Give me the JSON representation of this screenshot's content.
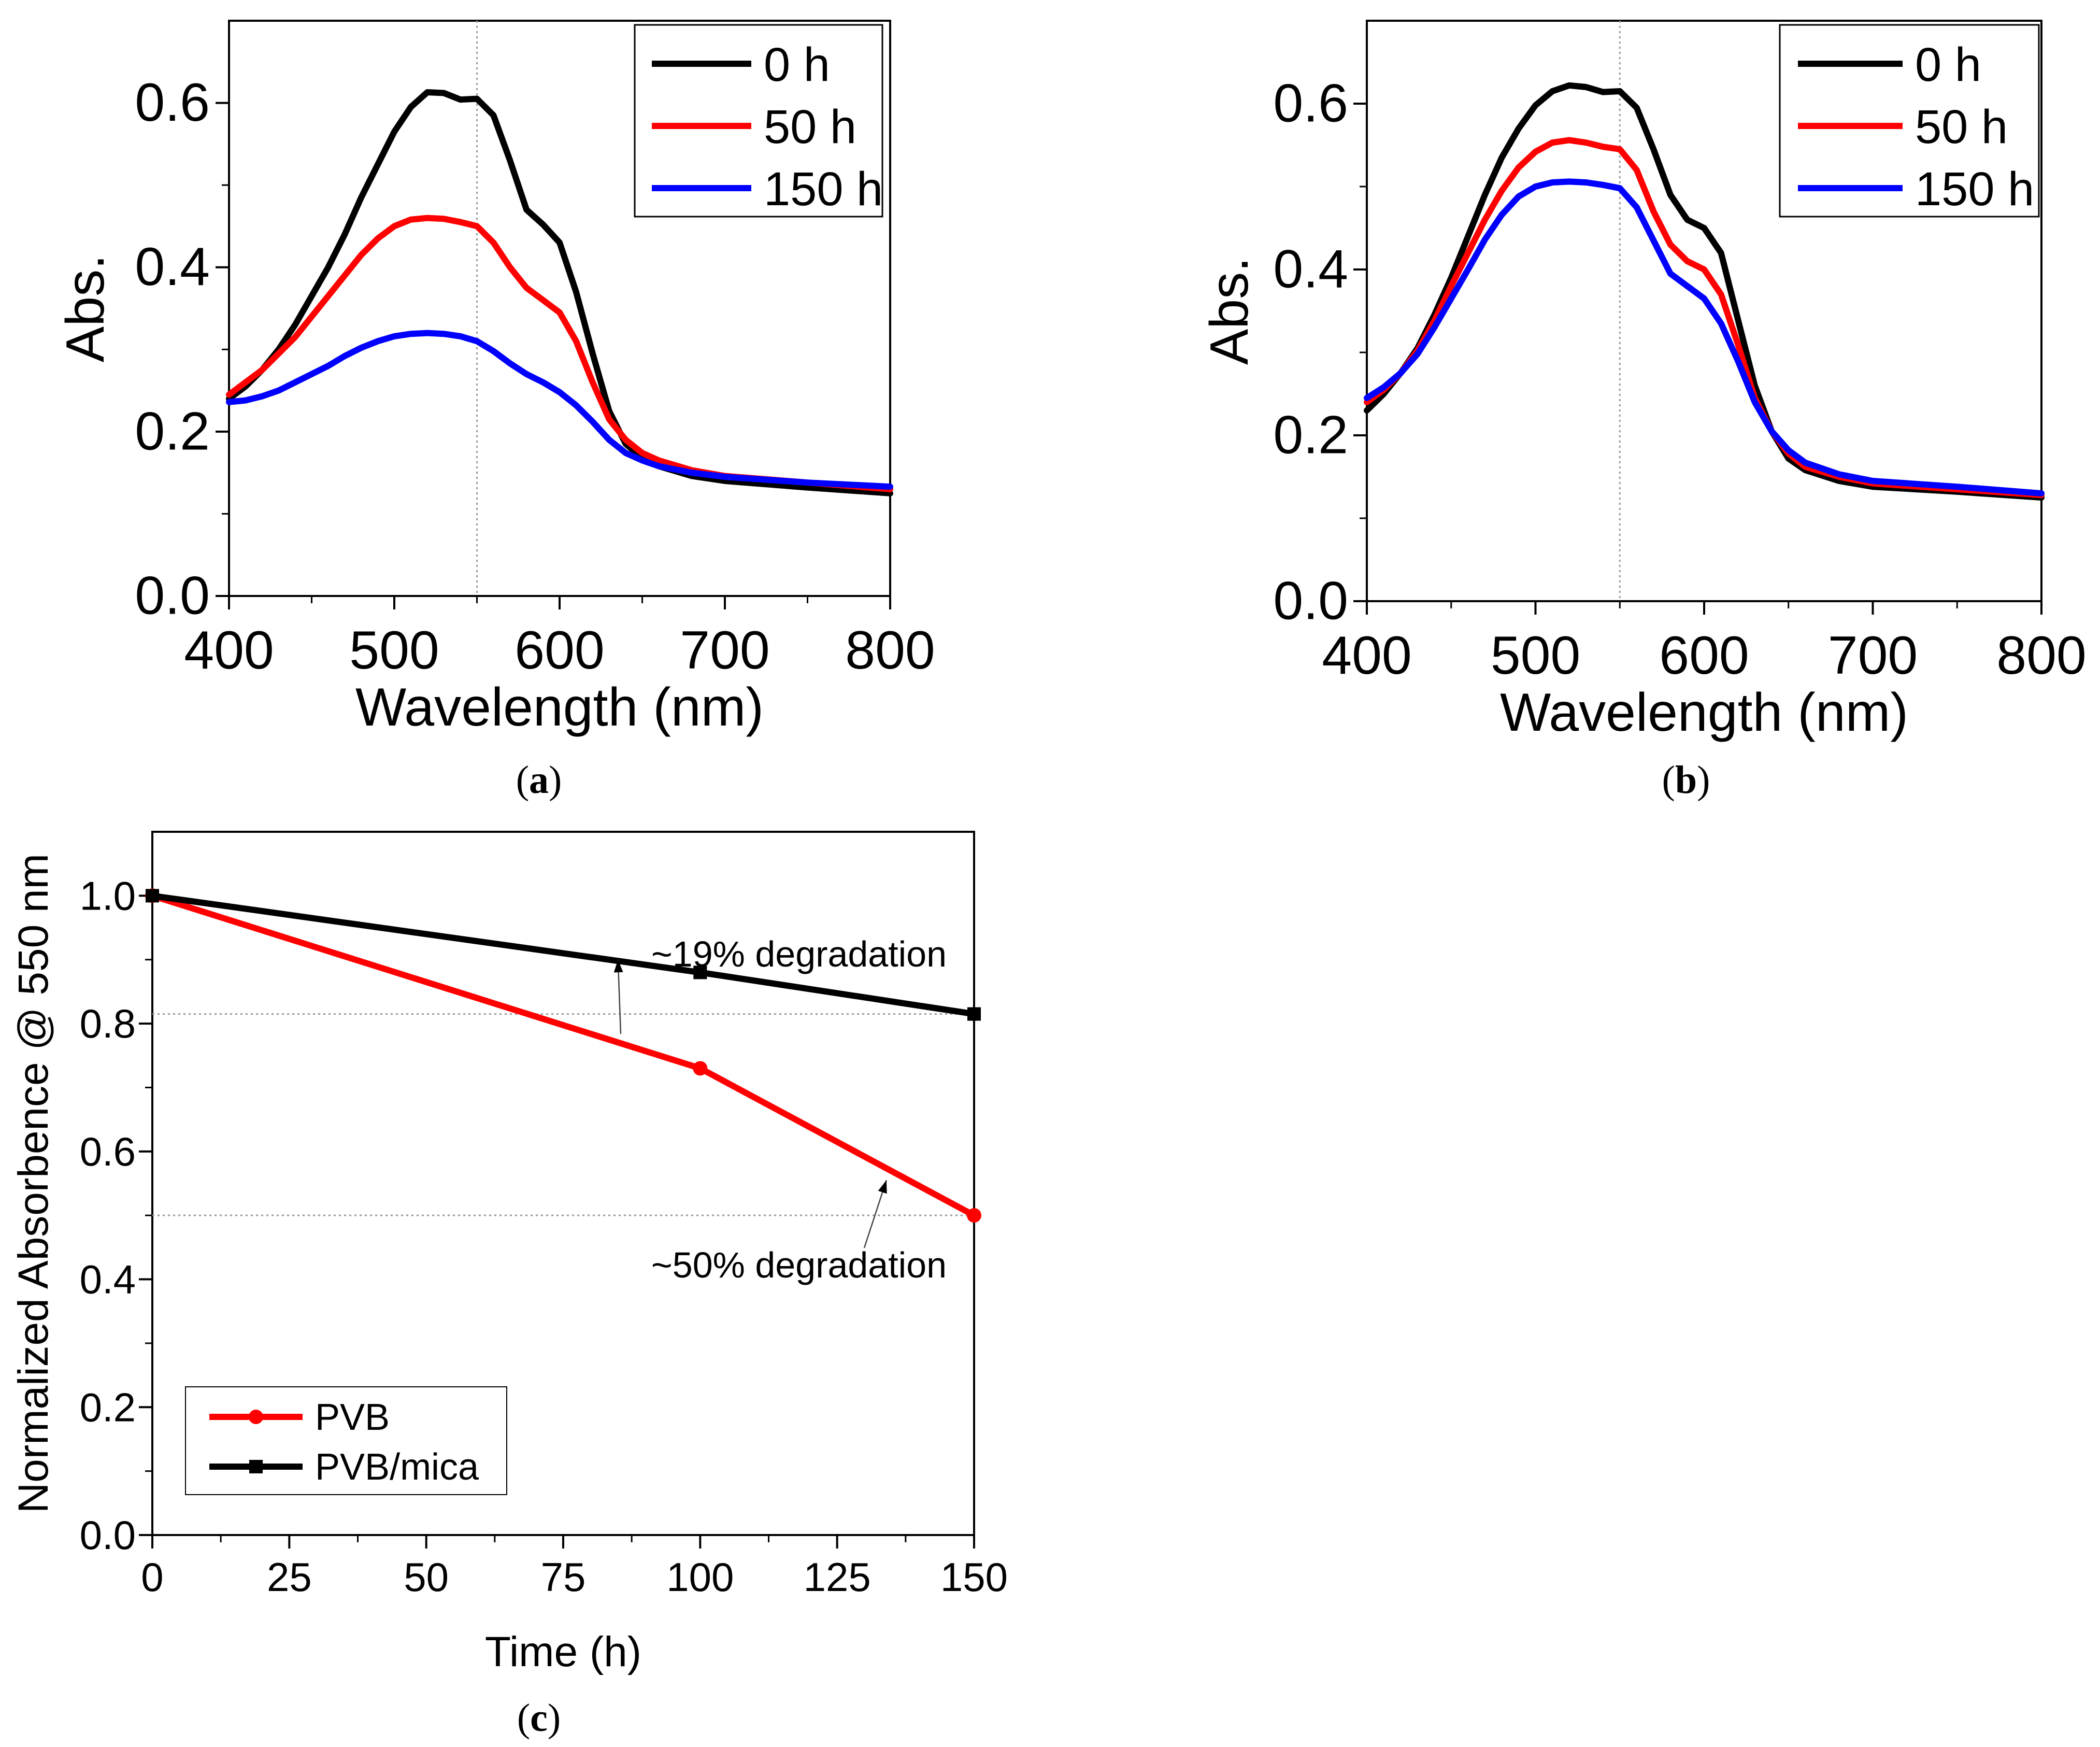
{
  "chart_data": [
    {
      "id": "a",
      "type": "line",
      "caption": "(a)",
      "caption_letter": "a",
      "xlabel": "Wavelength (nm)",
      "ylabel": "Abs.",
      "xlim": [
        400,
        800
      ],
      "ylim": [
        0.0,
        0.7
      ],
      "x_ticks": [
        "400",
        "500",
        "600",
        "700",
        "800"
      ],
      "y_ticks": [
        "0.0",
        "0.2",
        "0.4",
        "0.6"
      ],
      "reference_line_x": 550,
      "legend_position": "top-right",
      "x": [
        400,
        410,
        420,
        430,
        440,
        450,
        460,
        470,
        480,
        490,
        500,
        510,
        520,
        530,
        540,
        550,
        560,
        570,
        580,
        590,
        600,
        610,
        620,
        630,
        640,
        650,
        660,
        680,
        700,
        750,
        800
      ],
      "series": [
        {
          "name": "0 h",
          "color": "#000000",
          "values": [
            0.24,
            0.255,
            0.275,
            0.3,
            0.33,
            0.365,
            0.4,
            0.44,
            0.485,
            0.525,
            0.565,
            0.595,
            0.613,
            0.612,
            0.604,
            0.605,
            0.585,
            0.53,
            0.47,
            0.452,
            0.43,
            0.37,
            0.295,
            0.225,
            0.185,
            0.168,
            0.158,
            0.146,
            0.14,
            0.132,
            0.125
          ]
        },
        {
          "name": "50 h",
          "color": "#ff0000",
          "values": [
            0.245,
            0.26,
            0.275,
            0.295,
            0.315,
            0.34,
            0.365,
            0.39,
            0.415,
            0.435,
            0.45,
            0.458,
            0.46,
            0.459,
            0.455,
            0.45,
            0.43,
            0.4,
            0.375,
            0.36,
            0.345,
            0.31,
            0.26,
            0.215,
            0.19,
            0.174,
            0.165,
            0.153,
            0.146,
            0.138,
            0.13
          ]
        },
        {
          "name": "150 h",
          "color": "#0000ff",
          "values": [
            0.236,
            0.238,
            0.243,
            0.25,
            0.26,
            0.27,
            0.28,
            0.292,
            0.302,
            0.31,
            0.316,
            0.319,
            0.32,
            0.319,
            0.316,
            0.31,
            0.298,
            0.283,
            0.27,
            0.26,
            0.248,
            0.232,
            0.212,
            0.19,
            0.174,
            0.165,
            0.158,
            0.15,
            0.145,
            0.138,
            0.133
          ]
        }
      ]
    },
    {
      "id": "b",
      "type": "line",
      "caption": "(b)",
      "caption_letter": "b",
      "xlabel": "Wavelength (nm)",
      "ylabel": "Abs.",
      "xlim": [
        400,
        800
      ],
      "ylim": [
        0.0,
        0.7
      ],
      "x_ticks": [
        "400",
        "500",
        "600",
        "700",
        "800"
      ],
      "y_ticks": [
        "0.0",
        "0.2",
        "0.4",
        "0.6"
      ],
      "reference_line_x": 550,
      "legend_position": "top-right",
      "x": [
        400,
        410,
        420,
        430,
        440,
        450,
        460,
        470,
        480,
        490,
        500,
        510,
        520,
        530,
        540,
        550,
        560,
        570,
        580,
        590,
        600,
        610,
        620,
        630,
        640,
        650,
        660,
        680,
        700,
        750,
        800
      ],
      "series": [
        {
          "name": "0 h",
          "color": "#000000",
          "values": [
            0.23,
            0.25,
            0.275,
            0.305,
            0.345,
            0.39,
            0.44,
            0.49,
            0.535,
            0.57,
            0.598,
            0.615,
            0.622,
            0.62,
            0.614,
            0.615,
            0.595,
            0.545,
            0.49,
            0.46,
            0.45,
            0.42,
            0.34,
            0.26,
            0.205,
            0.172,
            0.158,
            0.145,
            0.138,
            0.132,
            0.125
          ]
        },
        {
          "name": "50 h",
          "color": "#ff0000",
          "values": [
            0.24,
            0.255,
            0.275,
            0.302,
            0.338,
            0.38,
            0.42,
            0.46,
            0.495,
            0.523,
            0.542,
            0.553,
            0.556,
            0.553,
            0.548,
            0.545,
            0.52,
            0.47,
            0.43,
            0.41,
            0.4,
            0.37,
            0.31,
            0.245,
            0.205,
            0.178,
            0.162,
            0.15,
            0.142,
            0.135,
            0.128
          ]
        },
        {
          "name": "150 h",
          "color": "#0000ff",
          "values": [
            0.245,
            0.258,
            0.275,
            0.298,
            0.33,
            0.365,
            0.4,
            0.436,
            0.466,
            0.488,
            0.5,
            0.505,
            0.506,
            0.505,
            0.502,
            0.498,
            0.475,
            0.435,
            0.395,
            0.38,
            0.365,
            0.335,
            0.29,
            0.24,
            0.205,
            0.182,
            0.167,
            0.153,
            0.145,
            0.138,
            0.13
          ]
        }
      ]
    },
    {
      "id": "c",
      "type": "line",
      "caption": "(c)",
      "caption_letter": "c",
      "xlabel": "Time (h)",
      "ylabel": "Normalized Absorbence @ 550 nm",
      "xlim": [
        0,
        150
      ],
      "ylim": [
        0.0,
        1.1
      ],
      "x_ticks": [
        "0",
        "25",
        "50",
        "75",
        "100",
        "125",
        "150"
      ],
      "y_ticks": [
        "0.0",
        "0.2",
        "0.4",
        "0.6",
        "0.8",
        "1.0"
      ],
      "legend_position": "bottom-left",
      "x": [
        0,
        100,
        150
      ],
      "series": [
        {
          "name": "PVB",
          "color": "#ff0000",
          "marker": "circle",
          "values": [
            1.0,
            0.73,
            0.5
          ]
        },
        {
          "name": "PVB/mica",
          "color": "#000000",
          "marker": "square",
          "values": [
            1.0,
            0.88,
            0.815
          ]
        }
      ],
      "reference_lines_y": [
        0.815,
        0.5
      ],
      "annotations": [
        {
          "text": "~19% degradation",
          "target": [
            85,
            0.9
          ]
        },
        {
          "text": "~50% degradation",
          "target": [
            134,
            0.555
          ]
        }
      ]
    }
  ]
}
